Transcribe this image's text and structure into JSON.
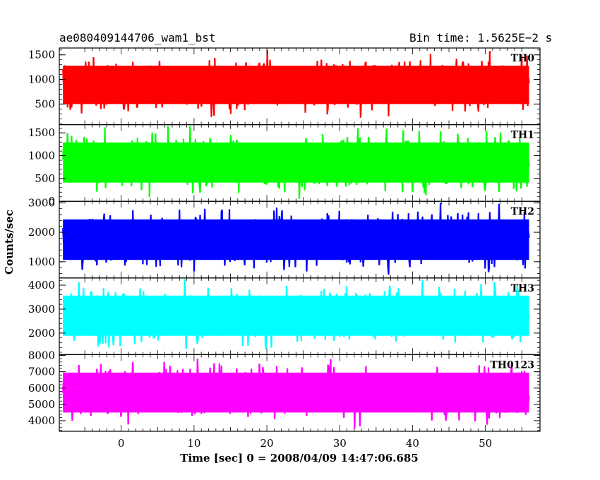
{
  "header": {
    "title": "ae080409144706_wam1_bst",
    "bin_time": "Bin time: 1.5625E−2 s"
  },
  "axes": {
    "xlabel": "Time [sec] 0 = 2008/04/09 14:47:06.685",
    "ylabel": "Counts/sec"
  },
  "chart_data": {
    "type": "line",
    "title": "ae080409144706_wam1_bst",
    "xlabel": "Time [sec] 0 = 2008/04/09 14:47:06.685",
    "ylabel": "Counts/sec",
    "xlim": [
      -8.5,
      57.5
    ],
    "x_range": [
      -8,
      56
    ],
    "x_ticks": [
      0,
      10,
      20,
      30,
      40,
      50
    ],
    "grid": false,
    "panels": [
      {
        "name": "TH0",
        "color": "#ff0000",
        "ylim": [
          80,
          1640
        ],
        "y_ticks": [
          500,
          1000,
          1500
        ],
        "low": 180,
        "high": 1600,
        "mean": 800
      },
      {
        "name": "TH1",
        "color": "#00ff00",
        "ylim": [
          0,
          1680
        ],
        "y_ticks": [
          0,
          500,
          1000,
          1500
        ],
        "low": 50,
        "high": 1650,
        "mean": 800
      },
      {
        "name": "TH2",
        "color": "#0000ff",
        "ylim": [
          450,
          3050
        ],
        "y_ticks": [
          1000,
          2000,
          3000
        ],
        "low": 500,
        "high": 3000,
        "mean": 1750
      },
      {
        "name": "TH3",
        "color": "#00ffff",
        "ylim": [
          1100,
          4300
        ],
        "y_ticks": [
          2000,
          3000,
          4000
        ],
        "low": 1200,
        "high": 4250,
        "mean": 2700
      },
      {
        "name": "TH0123",
        "color": "#ff00ff",
        "ylim": [
          3350,
          8050
        ],
        "y_ticks": [
          4000,
          5000,
          6000,
          7000,
          8000
        ],
        "low": 3500,
        "high": 7950,
        "mean": 5600
      }
    ]
  }
}
